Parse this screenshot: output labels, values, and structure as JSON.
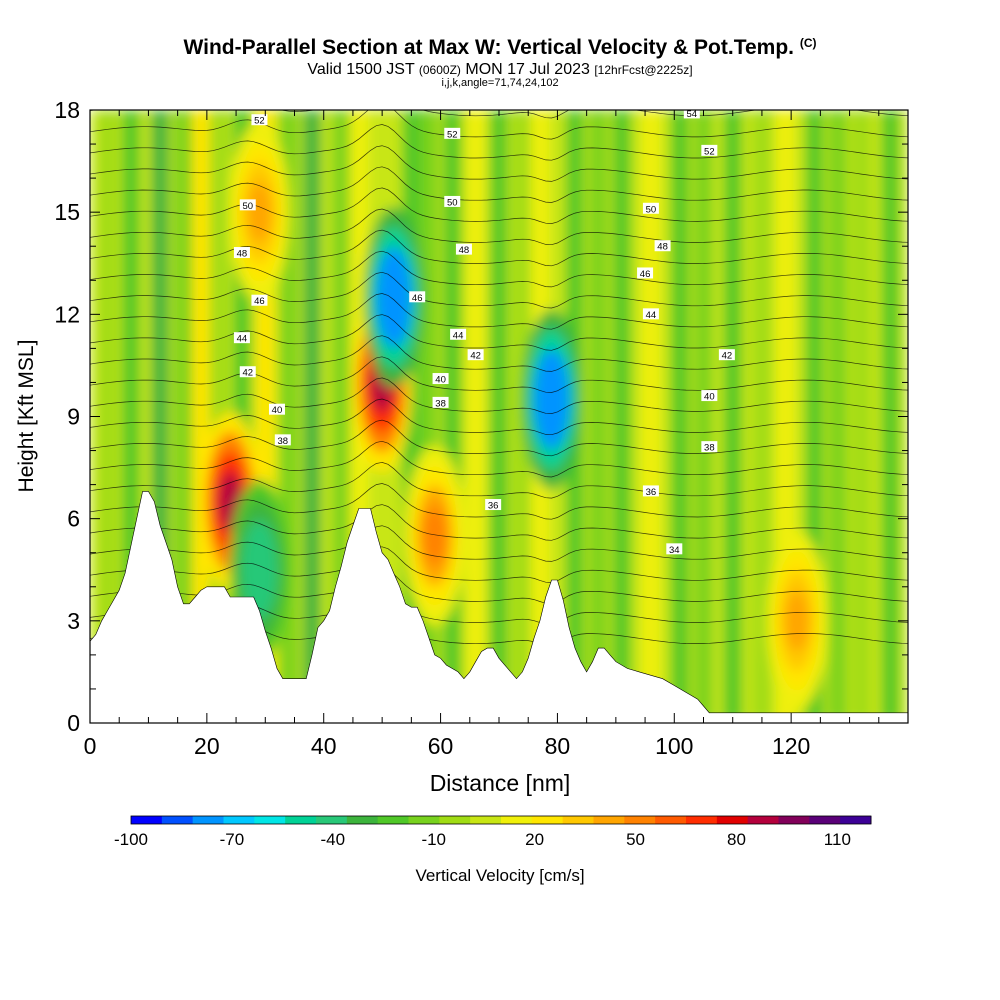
{
  "header": {
    "title": "Wind-Parallel Section at Max W: Vertical Velocity & Pot.Temp.",
    "copyright": "(C)",
    "valid_prefix": "Valid 1500 JST",
    "utc": "(0600Z)",
    "valid_date": "MON 17 Jul 2023",
    "forecast": "[12hrFcst@2225z]",
    "indices": "i,j,k,angle=71,74,24,102"
  },
  "chart_data": {
    "type": "heatmap",
    "xlabel": "Distance [nm]",
    "ylabel": "Height [Kft MSL]",
    "xlim": [
      0,
      140
    ],
    "ylim": [
      0,
      18
    ],
    "x_ticks": [
      0,
      20,
      40,
      60,
      80,
      100,
      120
    ],
    "y_ticks": [
      0,
      3,
      6,
      9,
      12,
      15,
      18
    ],
    "colorbar": {
      "label": "Vertical Velocity [cm/s]",
      "tick_labels": [
        "-100",
        "-70",
        "-40",
        "-10",
        "20",
        "50",
        "80",
        "110"
      ],
      "tick_values": [
        -100,
        -70,
        -40,
        -10,
        20,
        50,
        80,
        110
      ],
      "range": [
        -100,
        120
      ],
      "colors": [
        "#0000ff",
        "#0050ff",
        "#0094ff",
        "#00c8ff",
        "#00e6e6",
        "#00d296",
        "#28c878",
        "#3cb43c",
        "#50c828",
        "#78d21e",
        "#a0dc14",
        "#c8e614",
        "#f0f00a",
        "#ffe600",
        "#ffc800",
        "#ffa500",
        "#ff8200",
        "#ff5a00",
        "#ff2d00",
        "#e10000",
        "#b4003c",
        "#82005a",
        "#5a0078",
        "#3c0096"
      ]
    },
    "updraft_max_cm_s": [
      {
        "x": 24,
        "z_kft": 6.5,
        "w": 85
      },
      {
        "x": 29,
        "z_kft": 15,
        "w": 40
      },
      {
        "x": 50,
        "z_kft": 10,
        "w": 90
      },
      {
        "x": 59,
        "z_kft": 5.5,
        "w": 50
      },
      {
        "x": 121,
        "z_kft": 3,
        "w": 40
      }
    ],
    "downdraft_min_cm_s": [
      {
        "x": 52,
        "z_kft": 12.5,
        "w": -75
      },
      {
        "x": 79,
        "z_kft": 9.5,
        "w": -75
      },
      {
        "x": 29,
        "z_kft": 4.5,
        "w": -45
      }
    ],
    "theta_contours_c": [
      {
        "label": "54",
        "x": 103,
        "z_kft": 17.9
      },
      {
        "label": "52",
        "x": 29,
        "z_kft": 17.7
      },
      {
        "label": "52",
        "x": 62,
        "z_kft": 17.3
      },
      {
        "label": "52",
        "x": 106,
        "z_kft": 16.8
      },
      {
        "label": "50",
        "x": 27,
        "z_kft": 15.2
      },
      {
        "label": "50",
        "x": 62,
        "z_kft": 15.3
      },
      {
        "label": "50",
        "x": 96,
        "z_kft": 15.1
      },
      {
        "label": "48",
        "x": 26,
        "z_kft": 13.8
      },
      {
        "label": "48",
        "x": 64,
        "z_kft": 13.9
      },
      {
        "label": "48",
        "x": 98,
        "z_kft": 14.0
      },
      {
        "label": "46",
        "x": 29,
        "z_kft": 12.4
      },
      {
        "label": "46",
        "x": 56,
        "z_kft": 12.5
      },
      {
        "label": "46",
        "x": 95,
        "z_kft": 13.2
      },
      {
        "label": "44",
        "x": 26,
        "z_kft": 11.3
      },
      {
        "label": "44",
        "x": 63,
        "z_kft": 11.4
      },
      {
        "label": "44",
        "x": 96,
        "z_kft": 12.0
      },
      {
        "label": "42",
        "x": 27,
        "z_kft": 10.3
      },
      {
        "label": "42",
        "x": 66,
        "z_kft": 10.8
      },
      {
        "label": "42",
        "x": 109,
        "z_kft": 10.8
      },
      {
        "label": "40",
        "x": 32,
        "z_kft": 9.2
      },
      {
        "label": "40",
        "x": 60,
        "z_kft": 10.1
      },
      {
        "label": "40",
        "x": 106,
        "z_kft": 9.6
      },
      {
        "label": "38",
        "x": 33,
        "z_kft": 8.3
      },
      {
        "label": "38",
        "x": 60,
        "z_kft": 9.4
      },
      {
        "label": "38",
        "x": 106,
        "z_kft": 8.1
      },
      {
        "label": "36",
        "x": 69,
        "z_kft": 6.4
      },
      {
        "label": "36",
        "x": 96,
        "z_kft": 6.8
      },
      {
        "label": "34",
        "x": 100,
        "z_kft": 5.1
      }
    ],
    "terrain_kft": [
      [
        0,
        2.4
      ],
      [
        1,
        2.6
      ],
      [
        2,
        3.0
      ],
      [
        3,
        3.3
      ],
      [
        4,
        3.6
      ],
      [
        5,
        3.9
      ],
      [
        6,
        4.4
      ],
      [
        7,
        5.2
      ],
      [
        8,
        6.0
      ],
      [
        9,
        6.8
      ],
      [
        10,
        6.8
      ],
      [
        11,
        6.5
      ],
      [
        12,
        5.8
      ],
      [
        13,
        5.3
      ],
      [
        14,
        4.8
      ],
      [
        15,
        4.0
      ],
      [
        16,
        3.5
      ],
      [
        17,
        3.5
      ],
      [
        18,
        3.7
      ],
      [
        19,
        3.9
      ],
      [
        20,
        4.0
      ],
      [
        22,
        4.0
      ],
      [
        23,
        4.0
      ],
      [
        24,
        3.7
      ],
      [
        28,
        3.7
      ],
      [
        29,
        3.3
      ],
      [
        30,
        2.7
      ],
      [
        31,
        2.2
      ],
      [
        32,
        1.6
      ],
      [
        33,
        1.3
      ],
      [
        37,
        1.3
      ],
      [
        38,
        2.0
      ],
      [
        39,
        2.8
      ],
      [
        40,
        3.0
      ],
      [
        41,
        3.3
      ],
      [
        42,
        4.0
      ],
      [
        43,
        4.6
      ],
      [
        44,
        5.3
      ],
      [
        45,
        5.8
      ],
      [
        46,
        6.3
      ],
      [
        48,
        6.3
      ],
      [
        49,
        5.6
      ],
      [
        50,
        5.0
      ],
      [
        51,
        4.8
      ],
      [
        52,
        4.4
      ],
      [
        53,
        4.0
      ],
      [
        54,
        3.5
      ],
      [
        55,
        3.4
      ],
      [
        56,
        3.4
      ],
      [
        57,
        3.0
      ],
      [
        58,
        2.5
      ],
      [
        59,
        2.0
      ],
      [
        60,
        1.9
      ],
      [
        61,
        1.7
      ],
      [
        62,
        1.6
      ],
      [
        63,
        1.5
      ],
      [
        64,
        1.3
      ],
      [
        65,
        1.5
      ],
      [
        66,
        1.8
      ],
      [
        67,
        2.1
      ],
      [
        68,
        2.2
      ],
      [
        69,
        2.2
      ],
      [
        70,
        1.9
      ],
      [
        71,
        1.7
      ],
      [
        72,
        1.5
      ],
      [
        73,
        1.3
      ],
      [
        74,
        1.5
      ],
      [
        75,
        1.9
      ],
      [
        76,
        2.5
      ],
      [
        77,
        3.0
      ],
      [
        78,
        3.7
      ],
      [
        79,
        4.2
      ],
      [
        80,
        4.2
      ],
      [
        81,
        3.6
      ],
      [
        82,
        2.8
      ],
      [
        83,
        2.2
      ],
      [
        84,
        1.8
      ],
      [
        85,
        1.5
      ],
      [
        86,
        1.8
      ],
      [
        87,
        2.2
      ],
      [
        88,
        2.2
      ],
      [
        89,
        2.0
      ],
      [
        90,
        1.8
      ],
      [
        92,
        1.6
      ],
      [
        94,
        1.5
      ],
      [
        96,
        1.4
      ],
      [
        98,
        1.3
      ],
      [
        100,
        1.1
      ],
      [
        102,
        0.9
      ],
      [
        103,
        0.8
      ],
      [
        104,
        0.7
      ],
      [
        105,
        0.5
      ],
      [
        106,
        0.3
      ],
      [
        140,
        0.3
      ]
    ]
  }
}
